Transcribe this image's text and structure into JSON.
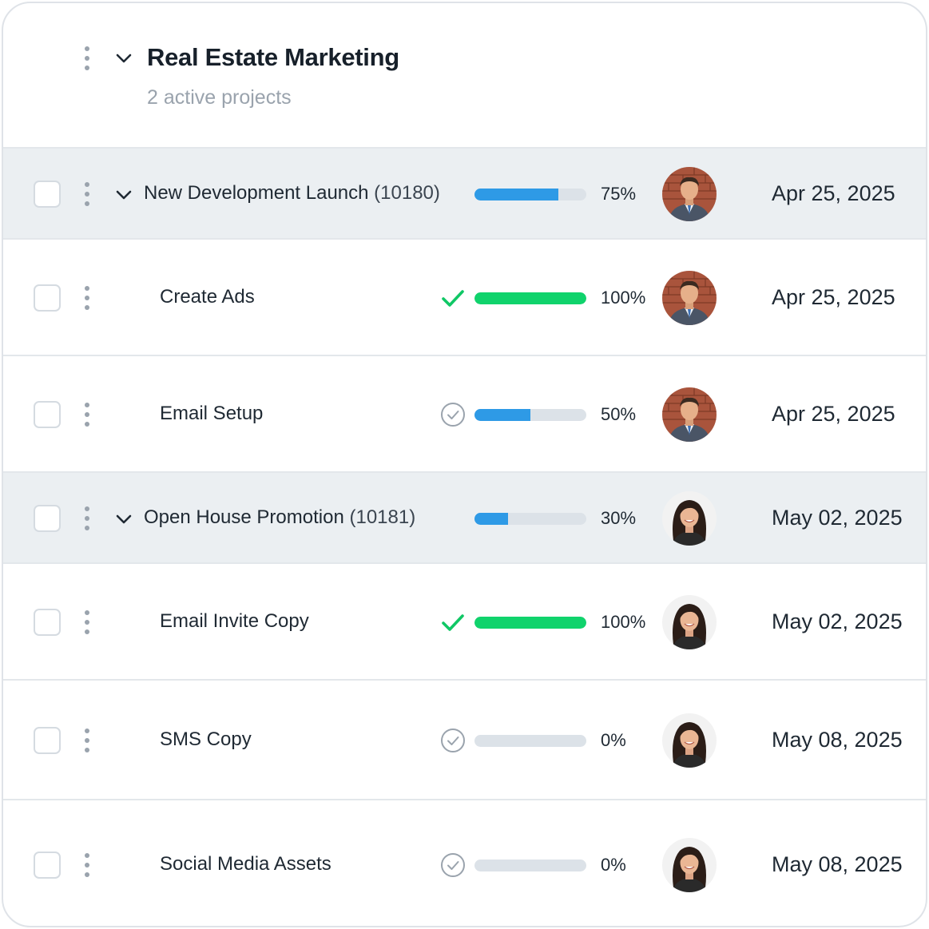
{
  "group": {
    "title": "Real Estate Marketing",
    "subtitle": "2 active projects"
  },
  "rows": [
    {
      "type": "parent",
      "name": "New Development Launch",
      "code": "(10180)",
      "progress": 75,
      "progress_label": "75%",
      "status": "none",
      "assignee": "man",
      "date": "Apr 25, 2025"
    },
    {
      "type": "task",
      "name": "Create Ads",
      "progress": 100,
      "progress_label": "100%",
      "status": "complete",
      "assignee": "man",
      "date": "Apr 25, 2025"
    },
    {
      "type": "task",
      "name": "Email Setup",
      "progress": 50,
      "progress_label": "50%",
      "status": "pending",
      "assignee": "man",
      "date": "Apr 25, 2025"
    },
    {
      "type": "parent",
      "name": "Open House Promotion",
      "code": "(10181)",
      "progress": 30,
      "progress_label": "30%",
      "status": "none",
      "assignee": "woman",
      "date": "May 02, 2025"
    },
    {
      "type": "task",
      "name": "Email Invite Copy",
      "progress": 100,
      "progress_label": "100%",
      "status": "complete",
      "assignee": "woman",
      "date": "May 02, 2025"
    },
    {
      "type": "task",
      "name": "SMS Copy",
      "progress": 0,
      "progress_label": "0%",
      "status": "pending",
      "assignee": "woman",
      "date": "May 08, 2025"
    },
    {
      "type": "task",
      "name": "Social Media Assets",
      "progress": 0,
      "progress_label": "0%",
      "status": "pending",
      "assignee": "woman",
      "date": "May 08, 2025"
    }
  ],
  "colors": {
    "progress_blue": "#2e9ae6",
    "progress_green": "#10d36c",
    "check_green": "#10c765",
    "pending_gray": "#9aa3ad"
  }
}
